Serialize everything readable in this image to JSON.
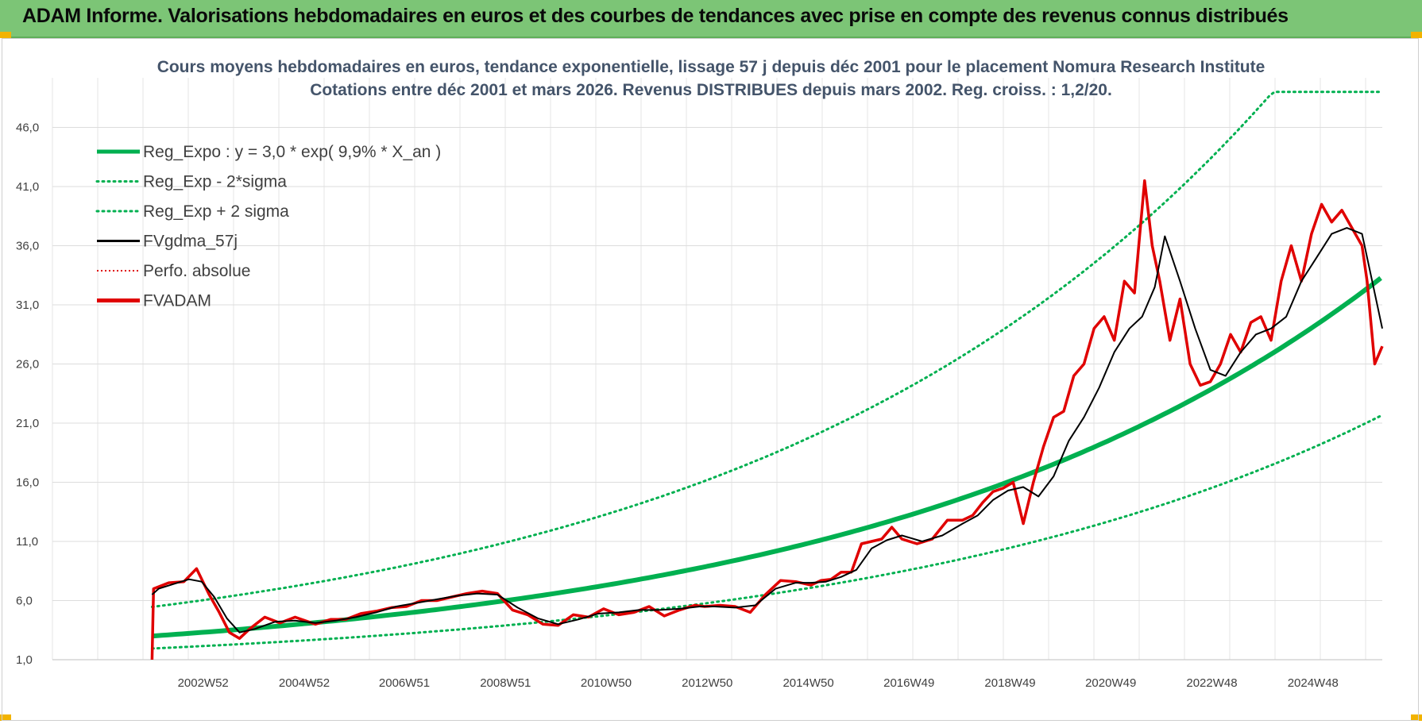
{
  "header": {
    "title": "ADAM Informe. Valorisations hebdomadaires en euros et des courbes de tendances avec prise en compte des revenus connus distribués"
  },
  "chart_data": {
    "type": "line",
    "title_line1": "Cours moyens hebdomadaires en euros, tendance exponentielle, lissage 57 j depuis déc 2001 pour le placement Nomura Research Institute",
    "title_line2": "Cotations entre déc 2001 et mars 2026. Revenus DISTRIBUES depuis mars 2002. Reg. croiss. : 1,2/20.",
    "y_ticks": [
      "1,0",
      "6,0",
      "11,0",
      "16,0",
      "21,0",
      "26,0",
      "31,0",
      "36,0",
      "41,0",
      "46,0"
    ],
    "ylim": [
      1,
      49
    ],
    "x_ticks": [
      "2002W52",
      "2004W52",
      "2006W51",
      "2008W51",
      "2010W50",
      "2012W50",
      "2014W50",
      "2016W49",
      "2018W49",
      "2020W49",
      "2022W48",
      "2024W48"
    ],
    "x_tick_years": [
      2002.98,
      2004.98,
      2006.96,
      2008.96,
      2010.95,
      2012.95,
      2014.95,
      2016.94,
      2018.94,
      2020.93,
      2022.93,
      2024.93
    ],
    "xlim": [
      2000.0,
      2026.3
    ],
    "data_start": 2001.97,
    "data_end": 2026.3,
    "regression": {
      "a": 3.0,
      "growth": 0.099,
      "start_year": 2001.97,
      "sigma_factor_low": 0.65,
      "sigma_factor_high": 1.82
    },
    "legend": [
      {
        "label": "Reg_Expo : y = 3,0 * exp( 9,9% *  X_an )",
        "style": "thick",
        "color": "#00b050"
      },
      {
        "label": "Reg_Exp - 2*sigma",
        "style": "dotted",
        "color": "#00b050"
      },
      {
        "label": "Reg_Exp + 2 sigma",
        "style": "dotted",
        "color": "#00b050"
      },
      {
        "label": "FVgdma_57j",
        "style": "solid",
        "color": "#000000"
      },
      {
        "label": "Perfo. absolue",
        "style": "dotted-thin",
        "color": "#e00000"
      },
      {
        "label": "FVADAM",
        "style": "thick",
        "color": "#e00000"
      }
    ],
    "series": [
      {
        "name": "FVADAM",
        "x": [
          2001.97,
          2002.0,
          2002.3,
          2002.6,
          2002.85,
          2003.1,
          2003.3,
          2003.5,
          2003.7,
          2003.9,
          2004.2,
          2004.5,
          2004.8,
          2005.2,
          2005.5,
          2005.8,
          2006.1,
          2006.4,
          2006.7,
          2007.0,
          2007.3,
          2007.6,
          2007.9,
          2008.2,
          2008.5,
          2008.8,
          2009.1,
          2009.4,
          2009.7,
          2010.0,
          2010.3,
          2010.6,
          2010.9,
          2011.2,
          2011.5,
          2011.8,
          2012.1,
          2012.4,
          2012.7,
          2012.9,
          2013.2,
          2013.5,
          2013.8,
          2014.1,
          2014.4,
          2014.7,
          2015.0,
          2015.2,
          2015.4,
          2015.6,
          2015.8,
          2016.0,
          2016.2,
          2016.4,
          2016.6,
          2016.8,
          2017.1,
          2017.4,
          2017.7,
          2018.0,
          2018.2,
          2018.4,
          2018.6,
          2018.8,
          2019.0,
          2019.2,
          2019.4,
          2019.6,
          2019.8,
          2020.0,
          2020.2,
          2020.4,
          2020.6,
          2020.8,
          2021.0,
          2021.2,
          2021.4,
          2021.6,
          2021.75,
          2021.9,
          2022.1,
          2022.3,
          2022.5,
          2022.7,
          2022.9,
          2023.1,
          2023.3,
          2023.5,
          2023.7,
          2023.9,
          2024.1,
          2024.3,
          2024.5,
          2024.7,
          2024.9,
          2025.1,
          2025.3,
          2025.5,
          2025.7,
          2025.9,
          2026.0,
          2026.15,
          2026.3
        ],
        "y": [
          1.0,
          7.0,
          7.5,
          7.6,
          8.7,
          6.5,
          5.0,
          3.3,
          2.8,
          3.6,
          4.6,
          4.1,
          4.6,
          4.0,
          4.4,
          4.4,
          4.9,
          5.1,
          5.4,
          5.5,
          6.0,
          6.0,
          6.3,
          6.6,
          6.8,
          6.6,
          5.2,
          4.8,
          4.0,
          3.9,
          4.8,
          4.6,
          5.3,
          4.8,
          5.0,
          5.5,
          4.7,
          5.2,
          5.6,
          5.5,
          5.6,
          5.5,
          5.0,
          6.5,
          7.7,
          7.6,
          7.3,
          7.7,
          7.8,
          8.4,
          8.4,
          10.8,
          11.0,
          11.2,
          12.2,
          11.2,
          10.8,
          11.2,
          12.8,
          12.8,
          13.2,
          14.3,
          15.2,
          15.5,
          16.0,
          12.5,
          16.0,
          19.0,
          21.5,
          22.0,
          25.0,
          26.0,
          29.0,
          30.0,
          28.0,
          33.0,
          32.0,
          41.5,
          36.0,
          33.0,
          28.0,
          31.5,
          26.0,
          24.2,
          24.5,
          26.0,
          28.5,
          27.0,
          29.5,
          30.0,
          28.0,
          33.0,
          36.0,
          33.0,
          37.0,
          39.5,
          38.0,
          39.0,
          37.5,
          36.0,
          33.0,
          26.0,
          27.5
        ]
      },
      {
        "name": "FVgdma_57j",
        "x": [
          2001.97,
          2002.1,
          2002.4,
          2002.7,
          2002.95,
          2003.2,
          2003.45,
          2003.7,
          2004.0,
          2004.4,
          2004.8,
          2005.2,
          2005.6,
          2006.0,
          2006.4,
          2006.8,
          2007.2,
          2007.6,
          2008.0,
          2008.4,
          2008.8,
          2009.2,
          2009.6,
          2010.0,
          2010.4,
          2010.8,
          2011.2,
          2011.6,
          2012.0,
          2012.4,
          2012.8,
          2013.1,
          2013.5,
          2013.9,
          2014.3,
          2014.7,
          2015.0,
          2015.3,
          2015.6,
          2015.9,
          2016.2,
          2016.5,
          2016.8,
          2017.2,
          2017.6,
          2018.0,
          2018.3,
          2018.6,
          2018.9,
          2019.2,
          2019.5,
          2019.8,
          2020.1,
          2020.4,
          2020.7,
          2021.0,
          2021.3,
          2021.55,
          2021.8,
          2022.0,
          2022.3,
          2022.6,
          2022.9,
          2023.2,
          2023.5,
          2023.8,
          2024.1,
          2024.4,
          2024.7,
          2025.0,
          2025.3,
          2025.6,
          2025.9,
          2026.1,
          2026.3
        ],
        "y": [
          6.5,
          7.0,
          7.4,
          7.8,
          7.6,
          6.3,
          4.5,
          3.3,
          3.6,
          4.2,
          4.3,
          4.1,
          4.3,
          4.6,
          5.0,
          5.5,
          5.8,
          6.1,
          6.4,
          6.6,
          6.5,
          5.4,
          4.5,
          4.0,
          4.4,
          4.9,
          5.0,
          5.2,
          5.2,
          5.3,
          5.5,
          5.5,
          5.4,
          5.6,
          7.0,
          7.5,
          7.5,
          7.6,
          8.0,
          8.6,
          10.4,
          11.1,
          11.5,
          11.0,
          11.5,
          12.5,
          13.2,
          14.5,
          15.3,
          15.6,
          14.8,
          16.5,
          19.5,
          21.5,
          24.0,
          27.0,
          29.0,
          30.0,
          32.5,
          36.8,
          33.0,
          29.0,
          25.5,
          25.0,
          27.0,
          28.5,
          29.0,
          30.0,
          33.0,
          35.0,
          37.0,
          37.5,
          37.0,
          33.0,
          29.0
        ]
      }
    ]
  }
}
